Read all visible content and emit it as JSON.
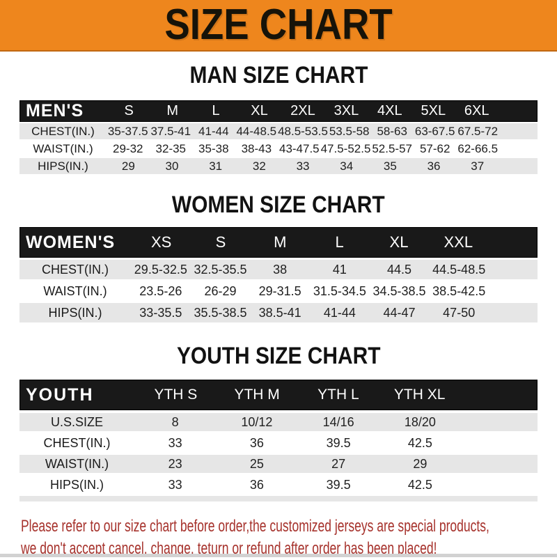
{
  "banner": {
    "title": "SIZE CHART",
    "background_color": "#EE861D",
    "border_color": "#C06812",
    "text_color": "#161309"
  },
  "colors": {
    "table_header_bg": "#191919",
    "table_header_text": "#FFFFFF",
    "row_gray": "#E6E6E6",
    "row_white": "#FFFFFF",
    "disclaimer_red": "#A6322C"
  },
  "sections": [
    {
      "heading": "MAN SIZE CHART",
      "table": {
        "corner": "MEN'S",
        "columns": [
          "S",
          "M",
          "L",
          "XL",
          "2XL",
          "3XL",
          "4XL",
          "5XL",
          "6XL"
        ],
        "rows": [
          {
            "label": "CHEST(IN.)",
            "values": [
              "35-37.5",
              "37.5-41",
              "41-44",
              "44-48.5",
              "48.5-53.5",
              "53.5-58",
              "58-63",
              "63-67.5",
              "67.5-72"
            ]
          },
          {
            "label": "WAIST(IN.)",
            "values": [
              "29-32",
              "32-35",
              "35-38",
              "38-43",
              "43-47.5",
              "47.5-52.5",
              "52.5-57",
              "57-62",
              "62-66.5"
            ]
          },
          {
            "label": "HIPS(IN.)",
            "values": [
              "29",
              "30",
              "31",
              "32",
              "33",
              "34",
              "35",
              "36",
              "37"
            ]
          }
        ]
      }
    },
    {
      "heading": "WOMEN SIZE CHART",
      "table": {
        "corner": "WOMEN'S",
        "columns": [
          "XS",
          "S",
          "M",
          "L",
          "XL",
          "XXL"
        ],
        "rows": [
          {
            "label": "CHEST(IN.)",
            "values": [
              "29.5-32.5",
              "32.5-35.5",
              "38",
              "41",
              "44.5",
              "44.5-48.5"
            ]
          },
          {
            "label": "WAIST(IN.)",
            "values": [
              "23.5-26",
              "26-29",
              "29-31.5",
              "31.5-34.5",
              "34.5-38.5",
              "38.5-42.5"
            ]
          },
          {
            "label": "HIPS(IN.)",
            "values": [
              "33-35.5",
              "35.5-38.5",
              "38.5-41",
              "41-44",
              "44-47",
              "47-50"
            ]
          }
        ]
      }
    },
    {
      "heading": "YOUTH SIZE CHART",
      "table": {
        "corner": "YOUTH",
        "columns": [
          "YTH S",
          "YTH M",
          "YTH L",
          "YTH XL"
        ],
        "rows": [
          {
            "label": "U.S.SIZE",
            "values": [
              "8",
              "10/12",
              "14/16",
              "18/20"
            ]
          },
          {
            "label": "CHEST(IN.)",
            "values": [
              "33",
              "36",
              "39.5",
              "42.5"
            ]
          },
          {
            "label": "WAIST(IN.)",
            "values": [
              "23",
              "25",
              "27",
              "29"
            ]
          },
          {
            "label": "HIPS(IN.)",
            "values": [
              "33",
              "36",
              "39.5",
              "42.5"
            ]
          }
        ]
      }
    }
  ],
  "disclaimer": {
    "lines": [
      "Please refer to our size chart before order,the customized jerseys are special products,",
      "we don't accept cancel, change, teturn or refund after order has been placed!"
    ]
  }
}
